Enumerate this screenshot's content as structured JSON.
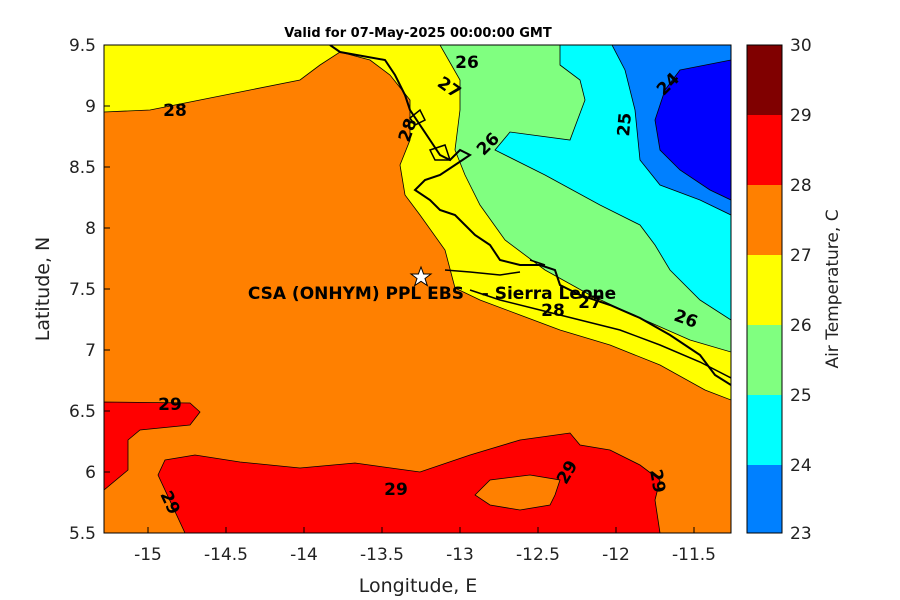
{
  "title": "Valid for 07-May-2025 00:00:00 GMT",
  "xlabel": "Longitude, E",
  "ylabel": "Latitude, N",
  "site_label": "CSA (ONHYM) PPL EBS   - Sierra Leone",
  "x_ticks": [
    "-15",
    "-14.5",
    "-14",
    "-13.5",
    "-13",
    "-12.5",
    "-12",
    "-11.5"
  ],
  "y_ticks": [
    "9.5",
    "9",
    "8.5",
    "8",
    "7.5",
    "7",
    "6.5",
    "6",
    "5.5"
  ],
  "colorbar": {
    "label": "Air Temperature, C",
    "ticks": [
      "30",
      "29",
      "28",
      "27",
      "26",
      "25",
      "24",
      "23"
    ],
    "bands": [
      {
        "min": 23,
        "max": 24,
        "color": "#0000ff"
      },
      {
        "min": 24,
        "max": 25,
        "color": "#0080ff"
      },
      {
        "min": 25,
        "max": 26,
        "color": "#00ffff"
      },
      {
        "min": 26,
        "max": 27,
        "color": "#80ff80"
      },
      {
        "min": 27,
        "max": 28,
        "color": "#ffff00"
      },
      {
        "min": 28,
        "max": 29,
        "color": "#ff8000"
      },
      {
        "min": 29,
        "max": 30,
        "color": "#ff0000"
      }
    ],
    "top_color": "#800000"
  },
  "contour_labels": [
    "26",
    "27",
    "28",
    "29",
    "25",
    "24"
  ],
  "chart_data": {
    "type": "heatmap",
    "title": "Valid for 07-May-2025 00:00:00 GMT",
    "xlabel": "Longitude, E",
    "ylabel": "Latitude, N",
    "xlim": [
      -15.25,
      -11.25
    ],
    "ylim": [
      5.5,
      9.5
    ],
    "variable": "Air Temperature, C",
    "clim": [
      23,
      30
    ],
    "contour_levels": [
      24,
      25,
      26,
      27,
      28,
      29
    ],
    "site_location": {
      "lon": -13.25,
      "lat": 7.6
    }
  }
}
